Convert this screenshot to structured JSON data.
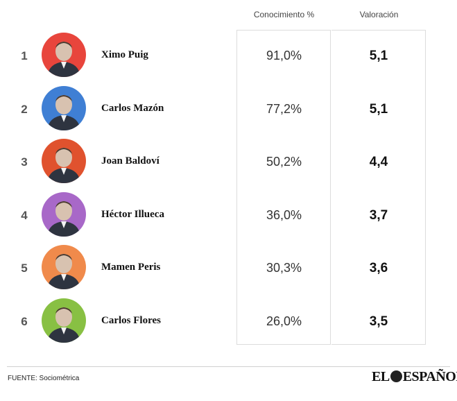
{
  "headers": {
    "knowledge": "Conocimiento %",
    "rating": "Valoración"
  },
  "chart_data": {
    "type": "table",
    "columns": [
      "",
      "",
      "Conocimiento %",
      "Valoración"
    ],
    "rows": [
      {
        "rank": "1",
        "name": "Ximo Puig",
        "knowledge": "91,0%",
        "rating": "5,1",
        "color": "#e8453c"
      },
      {
        "rank": "2",
        "name": "Carlos Mazón",
        "knowledge": "77,2%",
        "rating": "5,1",
        "color": "#3f7fd4"
      },
      {
        "rank": "3",
        "name": "Joan Baldoví",
        "knowledge": "50,2%",
        "rating": "4,4",
        "color": "#e0522e"
      },
      {
        "rank": "4",
        "name": "Héctor Illueca",
        "knowledge": "36,0%",
        "rating": "3,7",
        "color": "#a868c8"
      },
      {
        "rank": "5",
        "name": "Mamen Peris",
        "knowledge": "30,3%",
        "rating": "3,6",
        "color": "#f08a4b"
      },
      {
        "rank": "6",
        "name": "Carlos Flores",
        "knowledge": "26,0%",
        "rating": "3,5",
        "color": "#88c043"
      }
    ]
  },
  "footer": {
    "source": "FUENTE: Sociométrica",
    "logo_left": "EL",
    "logo_right": "ESPAÑOL"
  }
}
